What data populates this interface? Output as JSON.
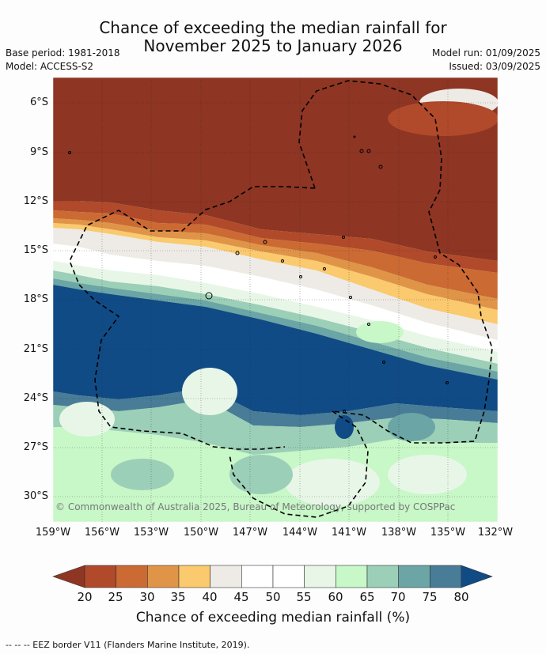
{
  "title_line1": "Chance of exceeding the median rainfall for",
  "title_line2": "November 2025 to January 2026",
  "base_period": "Base period: 1981-2018",
  "model": "Model: ACCESS-S2",
  "model_run": "Model run: 01/09/2025",
  "issued": "Issued: 03/09/2025",
  "copyright": "© Commonwealth of Australia 2025, Bureau of Meteorology, supported by COSPPac",
  "y_ticks": [
    "6°S",
    "9°S",
    "12°S",
    "15°S",
    "18°S",
    "21°S",
    "24°S",
    "27°S",
    "30°S"
  ],
  "x_ticks": [
    "159°W",
    "156°W",
    "153°W",
    "150°W",
    "147°W",
    "144°W",
    "141°W",
    "138°W",
    "135°W",
    "132°W"
  ],
  "colorbar": {
    "labels": [
      "20",
      "25",
      "30",
      "35",
      "40",
      "45",
      "50",
      "55",
      "60",
      "65",
      "70",
      "75",
      "80"
    ],
    "colors": [
      "#8e3524",
      "#b14a2a",
      "#cc6a34",
      "#e09448",
      "#fbc96e",
      "#eeebe6",
      "#ffffff",
      "#ffffff",
      "#e8f6e8",
      "#c8f7c8",
      "#9ccfb7",
      "#6ba5a5",
      "#487c97",
      "#114b86"
    ],
    "title": "Chance of exceeding median rainfall (%)"
  },
  "footer": "--  --  -- EEZ border V11 (Flanders Marine Institute, 2019)."
}
